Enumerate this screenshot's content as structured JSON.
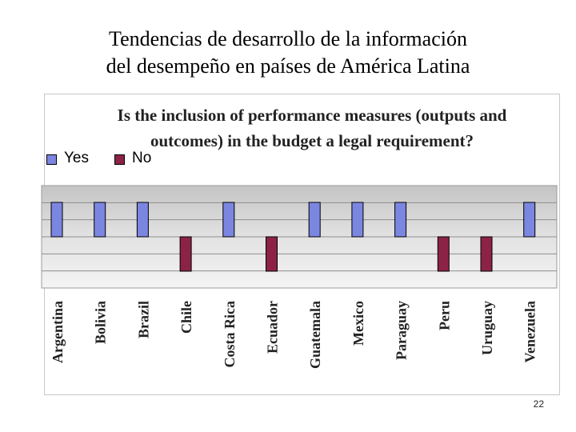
{
  "slide": {
    "title_line1": "Tendencias de desarrollo de la información",
    "title_line2": "del desempeño en países de América Latina",
    "page_number": "22"
  },
  "chart_data": {
    "type": "bar",
    "title_line1": "Is the inclusion of performance measures (outputs and",
    "title_line2": "outcomes) in the budget a legal requirement?",
    "legend_placement": "top-left",
    "series": [
      {
        "name": "Yes",
        "color": "#7b86e0"
      },
      {
        "name": "No",
        "color": "#8c2346"
      }
    ],
    "categories": [
      "Argentina",
      "Bolivia",
      "Brazil",
      "Chile",
      "Costa Rica",
      "Ecuador",
      "Guatemala",
      "Mexico",
      "Paraguay",
      "Peru",
      "Uruguay",
      "Venezuela"
    ],
    "values": [
      "Yes",
      "Yes",
      "Yes",
      "No",
      "Yes",
      "No",
      "Yes",
      "Yes",
      "Yes",
      "No",
      "No",
      "Yes"
    ],
    "grid": true
  }
}
